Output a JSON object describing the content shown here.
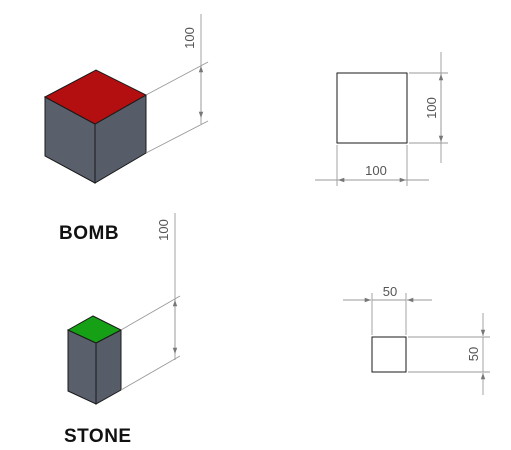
{
  "objects": [
    {
      "label": "BOMB",
      "top_color": "#b40f10",
      "side_color": "#5a5f6c",
      "height_dim": "100",
      "front_width_dim": "100",
      "front_height_dim": "100"
    },
    {
      "label": "STONE",
      "top_color": "#16a016",
      "side_color": "#5a5f6c",
      "height_dim": "100",
      "front_width_dim": "50",
      "front_height_dim": "50"
    }
  ]
}
